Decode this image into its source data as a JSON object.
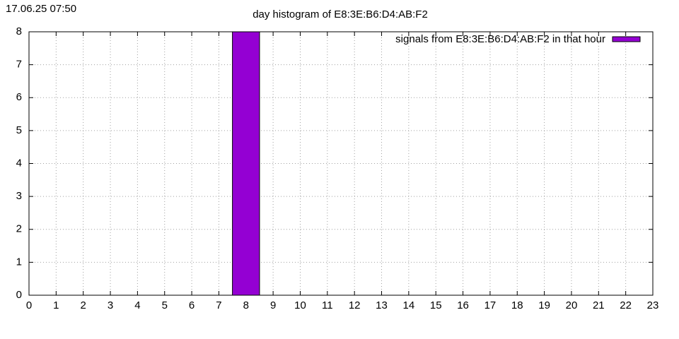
{
  "chart_data": {
    "type": "bar",
    "timestamp": "17.06.25 07:50",
    "title": "day histogram of E8:3E:B6:D4:AB:F2",
    "x": [
      8
    ],
    "series": [
      {
        "name": "signals from E8:3E:B6:D4:AB:F2 in that hour",
        "color": "#9400d3",
        "values": [
          8
        ]
      }
    ],
    "xlim": [
      0,
      23
    ],
    "xticks": [
      0,
      1,
      2,
      3,
      4,
      5,
      6,
      7,
      8,
      9,
      10,
      11,
      12,
      13,
      14,
      15,
      16,
      17,
      18,
      19,
      20,
      21,
      22,
      23
    ],
    "ylim": [
      0,
      8
    ],
    "yticks": [
      0,
      1,
      2,
      3,
      4,
      5,
      6,
      7,
      8
    ],
    "grid": true,
    "legend": "top-right"
  }
}
